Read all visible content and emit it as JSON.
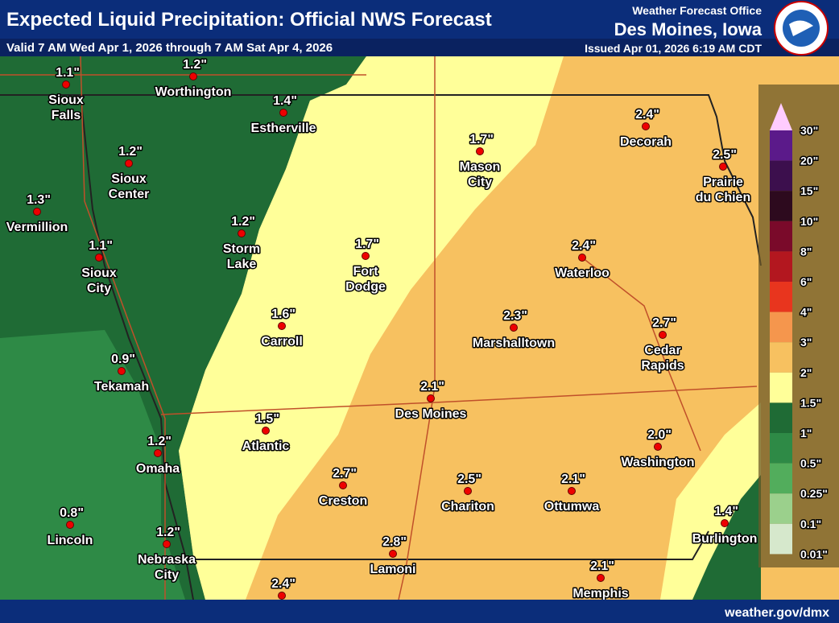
{
  "header": {
    "title": "Expected Liquid Precipitation: Official NWS Forecast",
    "valid": "Valid 7 AM Wed Apr 1, 2026 through 7 AM Sat Apr 4, 2026",
    "office_label": "Weather Forecast Office",
    "office_name": "Des Moines, Iowa",
    "issued": "Issued Apr 01, 2026 6:19 AM CDT"
  },
  "cities": [
    {
      "amount": "1.1\"",
      "name": [
        "Sioux",
        "Falls"
      ]
    },
    {
      "amount": "1.2\"",
      "name": [
        "Worthington"
      ]
    },
    {
      "amount": "1.4\"",
      "name": [
        "Estherville"
      ]
    },
    {
      "amount": "1.2\"",
      "name": [
        "Sioux",
        "Center"
      ]
    },
    {
      "amount": "1.3\"",
      "name": [
        "Vermillion"
      ]
    },
    {
      "amount": "1.1\"",
      "name": [
        "Sioux",
        "City"
      ]
    },
    {
      "amount": "1.2\"",
      "name": [
        "Storm",
        "Lake"
      ]
    },
    {
      "amount": "1.7\"",
      "name": [
        "Fort",
        "Dodge"
      ]
    },
    {
      "amount": "1.7\"",
      "name": [
        "Mason",
        "City"
      ]
    },
    {
      "amount": "2.4\"",
      "name": [
        "Decorah"
      ]
    },
    {
      "amount": "2.5\"",
      "name": [
        "Prairie",
        "du Chien"
      ]
    },
    {
      "amount": "2.4\"",
      "name": [
        "Waterloo"
      ]
    },
    {
      "amount": "1.6\"",
      "name": [
        "Carroll"
      ]
    },
    {
      "amount": "2.3\"",
      "name": [
        "Marshalltown"
      ]
    },
    {
      "amount": "2.7\"",
      "name": [
        "Cedar",
        "Rapids"
      ]
    },
    {
      "amount": "0.9\"",
      "name": [
        "Tekamah"
      ]
    },
    {
      "amount": "2.1\"",
      "name": [
        "Des Moines"
      ]
    },
    {
      "amount": "1.5\"",
      "name": [
        "Atlantic"
      ]
    },
    {
      "amount": "2.0\"",
      "name": [
        "Washington"
      ]
    },
    {
      "amount": "1.2\"",
      "name": [
        "Omaha"
      ]
    },
    {
      "amount": "2.7\"",
      "name": [
        "Creston"
      ]
    },
    {
      "amount": "2.5\"",
      "name": [
        "Chariton"
      ]
    },
    {
      "amount": "2.1\"",
      "name": [
        "Ottumwa"
      ]
    },
    {
      "amount": "0.8\"",
      "name": [
        "Lincoln"
      ]
    },
    {
      "amount": "1.4\"",
      "name": [
        "Burlington"
      ]
    },
    {
      "amount": "1.2\"",
      "name": [
        "Nebraska",
        "City"
      ]
    },
    {
      "amount": "2.8\"",
      "name": [
        "Lamoni"
      ]
    },
    {
      "amount": "2.1\"",
      "name": [
        "Memphis"
      ]
    },
    {
      "amount": "2.4\"",
      "name": []
    }
  ],
  "legend": {
    "labels": [
      "30\"",
      "20\"",
      "15\"",
      "10\"",
      "8\"",
      "6\"",
      "4\"",
      "3\"",
      "2\"",
      "1.5\"",
      "1\"",
      "0.5\"",
      "0.25\"",
      "0.1\"",
      "0.01\""
    ],
    "colors": [
      "#5b1a8a",
      "#3c0f4d",
      "#2d0a1e",
      "#7a0a2a",
      "#b3171f",
      "#e8351e",
      "#f5964d",
      "#f7c160",
      "#ffff99",
      "#1f6b35",
      "#2e8a46",
      "#52ad5c",
      "#9bd08c",
      "#d6e8cc"
    ],
    "top_color": "#ffccff"
  },
  "footer": {
    "url": "weather.gov/dmx"
  }
}
